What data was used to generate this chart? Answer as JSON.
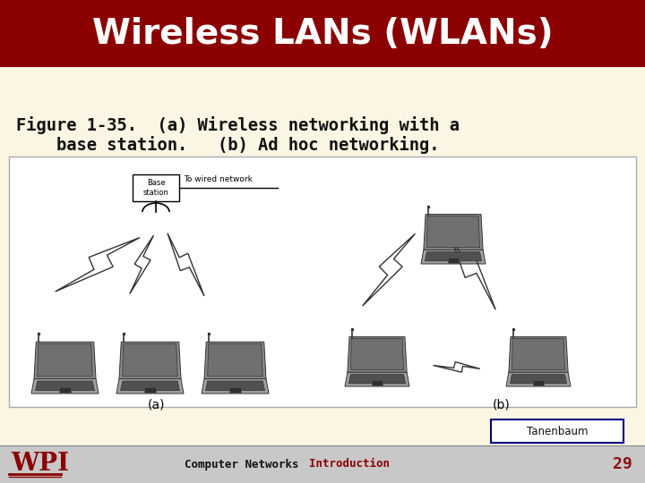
{
  "title": "Wireless LANs (WLANs)",
  "title_bg_color": "#8B0000",
  "title_text_color": "#FFFFFF",
  "slide_bg_color": "#FAF6E3",
  "figure_caption_line1": "Figure 1-35.  (a) Wireless networking with a",
  "figure_caption_line2": "    base station.   (b) Ad hoc networking.",
  "tanenbaum_label": "Tanenbaum",
  "footer_bg_color": "#C8C8C8",
  "footer_text": "Computer Networks",
  "footer_text2": "Introduction",
  "footer_text2_color": "#8B0000",
  "footer_number": "29",
  "footer_number_color": "#8B1111",
  "wpi_color": "#8B0000",
  "image_area_bg": "#FFFFFF",
  "image_border_color": "#AAAAAA",
  "label_a": "(a)",
  "label_b": "(b)"
}
